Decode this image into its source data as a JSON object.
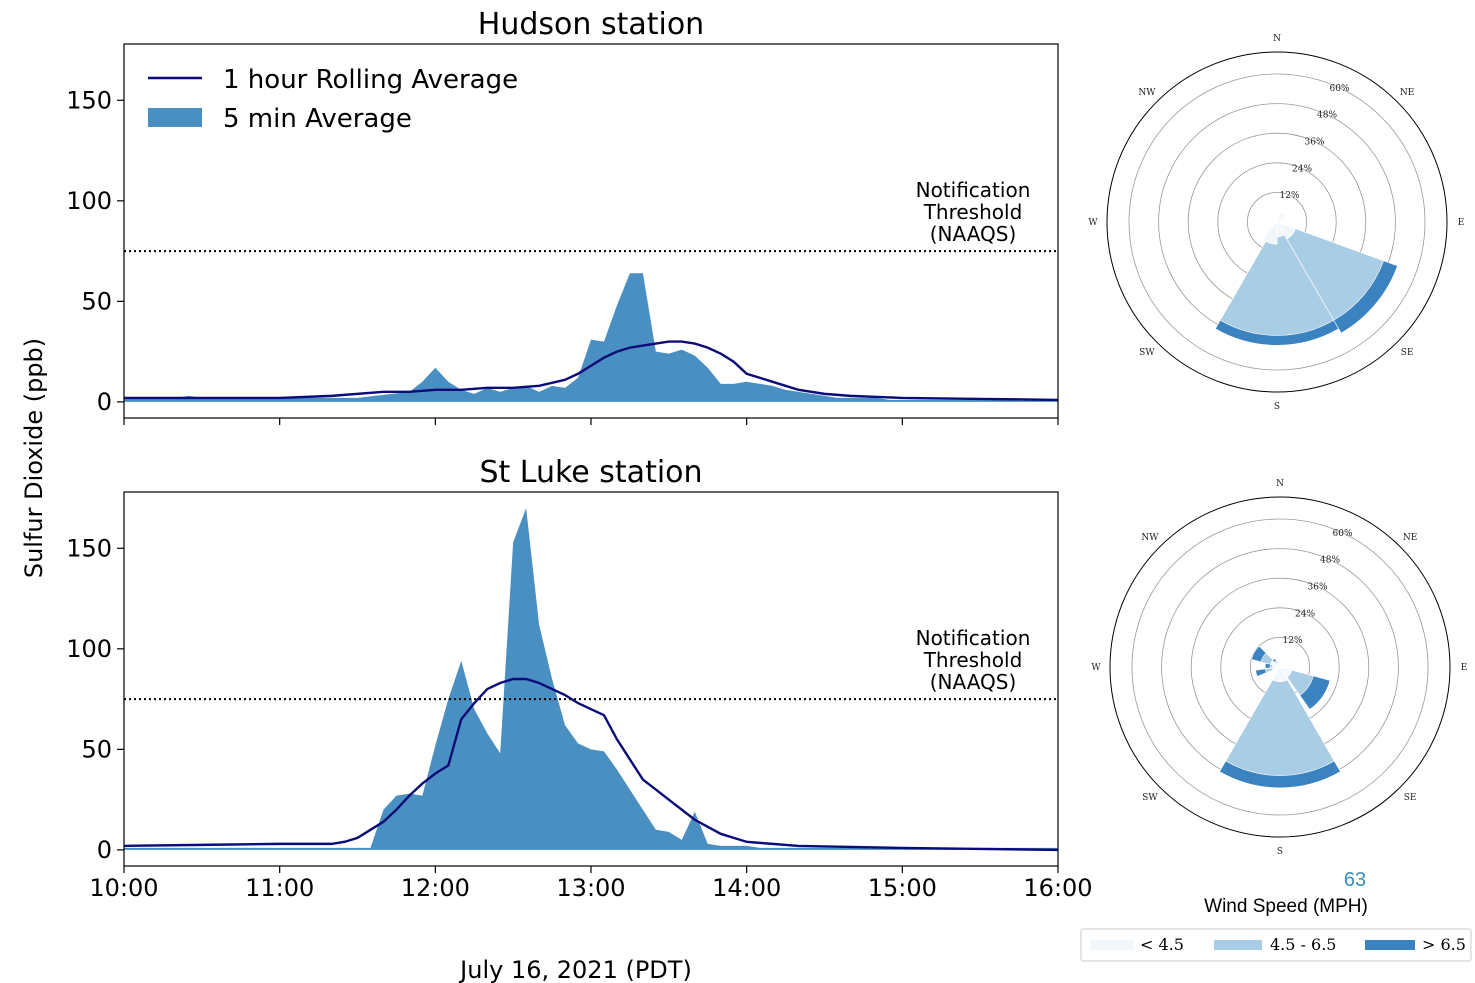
{
  "figure": {
    "ylabel": "Sulfur Dioxide (ppb)",
    "xlabel": "July 16, 2021 (PDT)",
    "page_number": "63"
  },
  "colors": {
    "area": "#4a8fc2",
    "line": "#0b0b7a",
    "threshold": "#000000",
    "wind_low": "#f2f7fc",
    "wind_mid": "#aacde6",
    "wind_high": "#3a82c0"
  },
  "chart_data": [
    {
      "type": "area",
      "title": "Hudson station",
      "x_ticks": [
        "10:00",
        "11:00",
        "12:00",
        "13:00",
        "14:00",
        "15:00",
        "16:00"
      ],
      "y_ticks": [
        "0",
        "50",
        "100",
        "150"
      ],
      "ylim": [
        -8,
        178
      ],
      "xlim": [
        0,
        360
      ],
      "x_unit": "minutes after 10:00",
      "threshold": {
        "value": 75,
        "label_lines": [
          "Notification",
          "Threshold",
          "(NAAQS)"
        ]
      },
      "legend": {
        "line_label": "1 hour Rolling Average",
        "area_label": "5 min Average",
        "placement": "upper-left"
      },
      "series": [
        {
          "name": "5 min Average",
          "x": [
            0,
            20,
            25,
            30,
            60,
            80,
            90,
            110,
            115,
            120,
            125,
            130,
            135,
            140,
            145,
            150,
            155,
            160,
            165,
            170,
            175,
            180,
            185,
            190,
            195,
            200,
            205,
            210,
            215,
            220,
            225,
            230,
            235,
            240,
            245,
            250,
            255,
            260,
            265,
            270,
            275,
            280,
            285,
            290,
            295,
            300,
            305,
            310,
            315,
            320,
            325,
            330,
            335,
            340,
            345,
            350,
            355,
            360
          ],
          "y": [
            2,
            2,
            3,
            2,
            2,
            2,
            2,
            5,
            10,
            17,
            10,
            6,
            4,
            7,
            5,
            7,
            8,
            5,
            8,
            7,
            12,
            31,
            30,
            48,
            64,
            64,
            25,
            24,
            26,
            23,
            17,
            9,
            9,
            10,
            9,
            8,
            6,
            5,
            4,
            3,
            2,
            2,
            2,
            2,
            1,
            1,
            1,
            1,
            1,
            1,
            1,
            1,
            1,
            1,
            1,
            1,
            1,
            1
          ]
        },
        {
          "name": "1 hour Rolling Average",
          "x": [
            0,
            30,
            60,
            80,
            100,
            110,
            120,
            130,
            140,
            150,
            160,
            170,
            175,
            180,
            185,
            190,
            195,
            200,
            205,
            210,
            215,
            220,
            225,
            230,
            235,
            240,
            245,
            250,
            255,
            260,
            270,
            280,
            300,
            330,
            360
          ],
          "y": [
            2,
            2,
            2,
            3,
            5,
            5,
            6,
            6,
            7,
            7,
            8,
            11,
            14,
            18,
            22,
            25,
            27,
            28,
            29,
            30,
            30,
            29,
            27,
            24,
            20,
            14,
            12,
            10,
            8,
            6,
            4,
            3,
            2,
            1.5,
            1
          ]
        }
      ]
    },
    {
      "type": "area",
      "title": "St Luke station",
      "x_ticks": [
        "10:00",
        "11:00",
        "12:00",
        "13:00",
        "14:00",
        "15:00",
        "16:00"
      ],
      "y_ticks": [
        "0",
        "50",
        "100",
        "150"
      ],
      "ylim": [
        -8,
        178
      ],
      "xlim": [
        0,
        360
      ],
      "x_unit": "minutes after 10:00",
      "threshold": {
        "value": 75,
        "label_lines": [
          "Notification",
          "Threshold",
          "(NAAQS)"
        ]
      },
      "series": [
        {
          "name": "5 min Average",
          "x": [
            0,
            30,
            60,
            90,
            92,
            95,
            100,
            105,
            110,
            115,
            120,
            125,
            130,
            135,
            140,
            145,
            150,
            155,
            160,
            165,
            170,
            175,
            180,
            185,
            190,
            195,
            200,
            205,
            210,
            215,
            220,
            225,
            230,
            235,
            240,
            245,
            250,
            255,
            260,
            265,
            270,
            275,
            280,
            290,
            300,
            310,
            320,
            330,
            340,
            350,
            360
          ],
          "y": [
            1,
            1,
            1,
            1,
            1,
            1,
            20,
            27,
            28,
            27,
            52,
            75,
            94,
            70,
            58,
            48,
            153,
            170,
            112,
            85,
            62,
            53,
            50,
            49,
            40,
            30,
            20,
            10,
            9,
            5,
            19,
            3,
            2,
            2,
            2,
            1,
            1,
            1,
            1,
            1,
            1,
            1,
            1,
            1,
            1,
            1,
            1,
            1,
            1,
            1,
            1
          ]
        },
        {
          "name": "1 hour Rolling Average",
          "x": [
            0,
            30,
            60,
            65,
            70,
            80,
            85,
            90,
            95,
            100,
            105,
            110,
            115,
            120,
            125,
            130,
            135,
            140,
            145,
            150,
            155,
            160,
            165,
            170,
            175,
            180,
            185,
            190,
            195,
            200,
            205,
            210,
            220,
            230,
            240,
            250,
            260,
            280,
            300,
            330,
            360
          ],
          "y": [
            2,
            2.5,
            3,
            3,
            3,
            3,
            4,
            6,
            10,
            14,
            20,
            27,
            33,
            38,
            42,
            65,
            73,
            80,
            83,
            85,
            85,
            83,
            80,
            77,
            73,
            70,
            67,
            55,
            45,
            35,
            30,
            25,
            15,
            8,
            4,
            3,
            2,
            1.5,
            1,
            0.5,
            0
          ]
        }
      ]
    }
  ],
  "wind_roses": [
    {
      "station": "Hudson station",
      "directions": [
        "N",
        "NE",
        "E",
        "SE",
        "S",
        "SW",
        "W",
        "NW"
      ],
      "ring_labels": [
        "12%",
        "24%",
        "36%",
        "48%",
        "60%"
      ],
      "max_percent": 60,
      "sectors": [
        {
          "direction_deg": 180,
          "width_deg": 60,
          "low": 6,
          "mid": 46,
          "high": 50
        },
        {
          "direction_deg": 130,
          "width_deg": 40,
          "low": 8,
          "mid": 46,
          "high": 52
        },
        {
          "direction_deg": 45,
          "width_deg": 40,
          "low": 4,
          "mid": 4,
          "high": 4
        },
        {
          "direction_deg": 200,
          "width_deg": 40,
          "low": 9,
          "mid": 9,
          "high": 9
        }
      ]
    },
    {
      "station": "St Luke station",
      "directions": [
        "N",
        "NE",
        "E",
        "SE",
        "S",
        "SW",
        "W",
        "NW"
      ],
      "ring_labels": [
        "12%",
        "24%",
        "36%",
        "48%",
        "60%"
      ],
      "max_percent": 60,
      "sectors": [
        {
          "direction_deg": 180,
          "width_deg": 60,
          "low": 6,
          "mid": 44,
          "high": 49
        },
        {
          "direction_deg": 125,
          "width_deg": 40,
          "low": 5,
          "mid": 14,
          "high": 21
        },
        {
          "direction_deg": 300,
          "width_deg": 30,
          "low": 4,
          "mid": 8,
          "high": 12
        },
        {
          "direction_deg": 255,
          "width_deg": 15,
          "low": 3,
          "mid": 6,
          "high": 10
        },
        {
          "direction_deg": 275,
          "width_deg": 20,
          "low": 3,
          "mid": 4,
          "high": 6
        },
        {
          "direction_deg": 320,
          "width_deg": 20,
          "low": 2,
          "mid": 3,
          "high": 4
        }
      ]
    }
  ],
  "wind_legend": {
    "title": "Wind Speed (MPH)",
    "items": [
      "< 4.5",
      "4.5 - 6.5",
      "> 6.5"
    ]
  }
}
